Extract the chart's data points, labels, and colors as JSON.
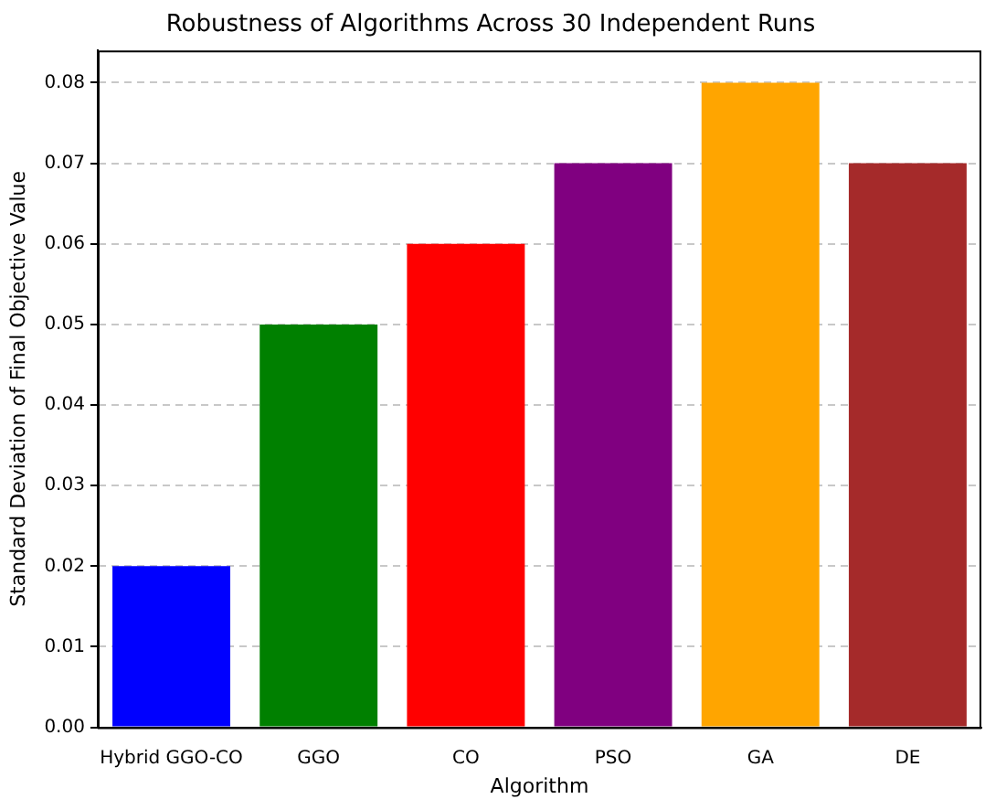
{
  "chart_data": {
    "type": "bar",
    "title": "Robustness of Algorithms Across 30 Independent Runs",
    "xlabel": "Algorithm",
    "ylabel": "Standard Deviation of Final Objective Value",
    "categories": [
      "Hybrid GGO-CO",
      "GGO",
      "CO",
      "PSO",
      "GA",
      "DE"
    ],
    "values": [
      0.02,
      0.05,
      0.06,
      0.07,
      0.08,
      0.07
    ],
    "colors": [
      "#0000ff",
      "#008000",
      "#ff0000",
      "#800080",
      "#ffa500",
      "#a52a2a"
    ],
    "ylim": [
      0,
      0.084
    ],
    "yticks": [
      {
        "value": 0,
        "label": "0.00"
      },
      0.01,
      0.02,
      0.03,
      0.04,
      0.05,
      0.06,
      0.07,
      0.08
    ],
    "grid": "y"
  }
}
